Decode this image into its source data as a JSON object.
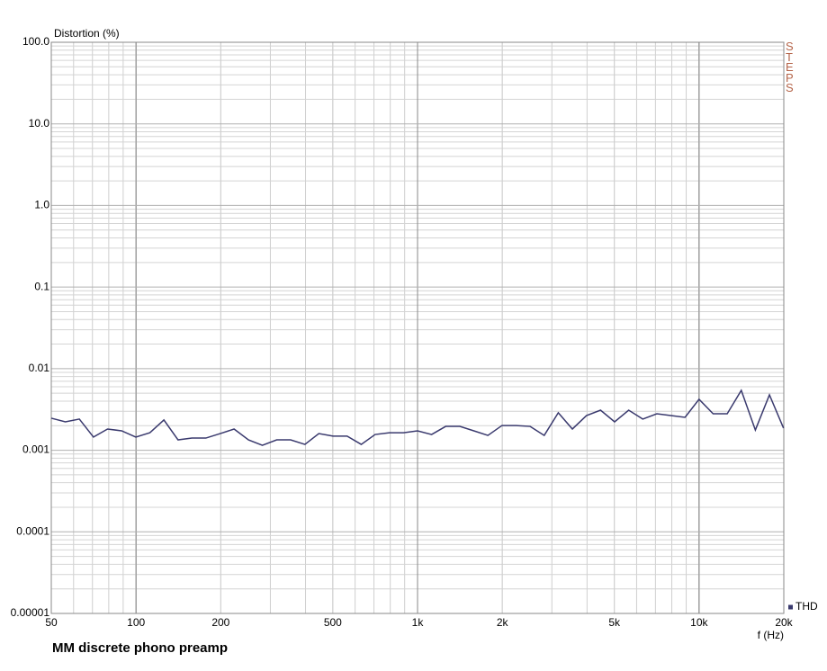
{
  "chart_data": {
    "type": "line",
    "title": "MM discrete phono preamp",
    "ylabel": "Distortion (%)",
    "xlabel": "f (Hz)",
    "watermark": "STEPS",
    "xscale": "log",
    "yscale": "log",
    "grid": true,
    "legend": "bottom-right",
    "xlim": [
      50,
      20000
    ],
    "xticks": [
      50,
      100,
      200,
      500,
      {
        "value": 1000,
        "label": "1k"
      },
      {
        "value": 2000,
        "label": "2k"
      },
      {
        "value": 5000,
        "label": "5k"
      },
      {
        "value": 10000,
        "label": "10k"
      },
      {
        "value": 20000,
        "label": "20k"
      }
    ],
    "ylim": [
      1e-05,
      100
    ],
    "yticks": [
      {
        "value": 100,
        "label": "100.0"
      },
      {
        "value": 10,
        "label": "10.0"
      },
      {
        "value": 1,
        "label": "1.0"
      },
      0.1,
      0.01,
      0.001,
      0.0001,
      {
        "value": 1e-05,
        "label": "0.00001"
      }
    ],
    "x": [
      50,
      56.1,
      62.9,
      70.6,
      79.2,
      88.9,
      99.8,
      112,
      125.6,
      141,
      158,
      177,
      199,
      223,
      251,
      281,
      316,
      354,
      398,
      446,
      501,
      562,
      631,
      707,
      794,
      891,
      1000,
      1122,
      1259,
      1413,
      1585,
      1778,
      1995,
      2239,
      2512,
      2818,
      3162,
      3548,
      3981,
      4467,
      5012,
      5623,
      6310,
      7079,
      7943,
      8913,
      10000,
      11220,
      12589,
      14125,
      15849,
      17783,
      19953
    ],
    "series": [
      {
        "name": "THD",
        "color": "#3a3a6e",
        "values": [
          0.00247,
          0.00223,
          0.00241,
          0.00145,
          0.00182,
          0.00173,
          0.00145,
          0.00164,
          0.00235,
          0.00134,
          0.00141,
          0.00141,
          0.0016,
          0.00182,
          0.00134,
          0.00115,
          0.00134,
          0.00134,
          0.00118,
          0.0016,
          0.00149,
          0.00149,
          0.00118,
          0.00156,
          0.00164,
          0.00164,
          0.00173,
          0.00156,
          0.00196,
          0.00196,
          0.00173,
          0.00152,
          0.00201,
          0.00201,
          0.00196,
          0.00152,
          0.00288,
          0.00182,
          0.00266,
          0.0031,
          0.00223,
          0.0031,
          0.00241,
          0.0028,
          0.00266,
          0.00253,
          0.00421,
          0.0028,
          0.0028,
          0.00542,
          0.00177,
          0.00478,
          0.00187
        ]
      }
    ]
  }
}
